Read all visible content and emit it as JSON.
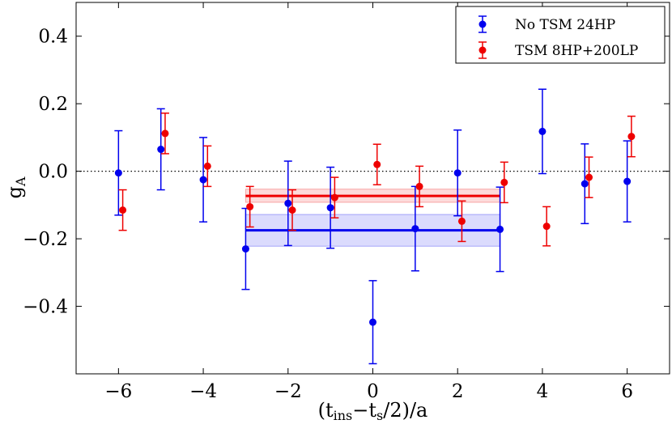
{
  "chart_data": {
    "type": "scatter",
    "title": "",
    "xlabel": "(t_ins−t_s/2)/a",
    "ylabel": "g_A",
    "xlim": [
      -7,
      7
    ],
    "ylim": [
      -0.6,
      0.5
    ],
    "xticks": [
      -6,
      -4,
      -2,
      0,
      2,
      4,
      6
    ],
    "xtick_labels": [
      "−6",
      "−4",
      "−2",
      "0",
      "2",
      "4",
      "6"
    ],
    "yticks": [
      -0.4,
      -0.2,
      0.0,
      0.2,
      0.4
    ],
    "ytick_labels": [
      "−0.4",
      "−0.2",
      "0.0",
      "0.2",
      "0.4"
    ],
    "reference_line_y": 0.0,
    "legend_position": "top-right",
    "series": [
      {
        "name": "No TSM 24HP",
        "color": "#0000ee",
        "x": [
          -6,
          -5,
          -4,
          -3,
          -2,
          -1,
          0,
          1,
          2,
          3,
          4,
          5,
          6
        ],
        "y": [
          -0.005,
          0.065,
          -0.025,
          -0.23,
          -0.095,
          -0.108,
          -0.447,
          -0.17,
          -0.005,
          -0.172,
          0.118,
          -0.037,
          -0.03
        ],
        "err": [
          0.125,
          0.12,
          0.125,
          0.12,
          0.125,
          0.12,
          0.123,
          0.125,
          0.127,
          0.125,
          0.125,
          0.118,
          0.12
        ],
        "fit": {
          "x_range": [
            -3,
            3
          ],
          "value": -0.175,
          "band": [
            -0.222,
            -0.128
          ]
        }
      },
      {
        "name": "TSM 8HP+200LP",
        "color": "#ee0000",
        "x": [
          -5.9,
          -4.9,
          -3.9,
          -2.9,
          -1.9,
          -0.9,
          0.1,
          1.1,
          2.1,
          3.1,
          4.1,
          5.1,
          6.1
        ],
        "y": [
          -0.115,
          0.112,
          0.015,
          -0.105,
          -0.115,
          -0.078,
          0.02,
          -0.045,
          -0.148,
          -0.033,
          -0.163,
          -0.018,
          0.103
        ],
        "err": [
          0.06,
          0.06,
          0.06,
          0.06,
          0.06,
          0.06,
          0.06,
          0.06,
          0.06,
          0.06,
          0.058,
          0.06,
          0.06
        ],
        "fit": {
          "x_range": [
            -3,
            3
          ],
          "value": -0.073,
          "band": [
            -0.092,
            -0.053
          ]
        }
      }
    ]
  }
}
